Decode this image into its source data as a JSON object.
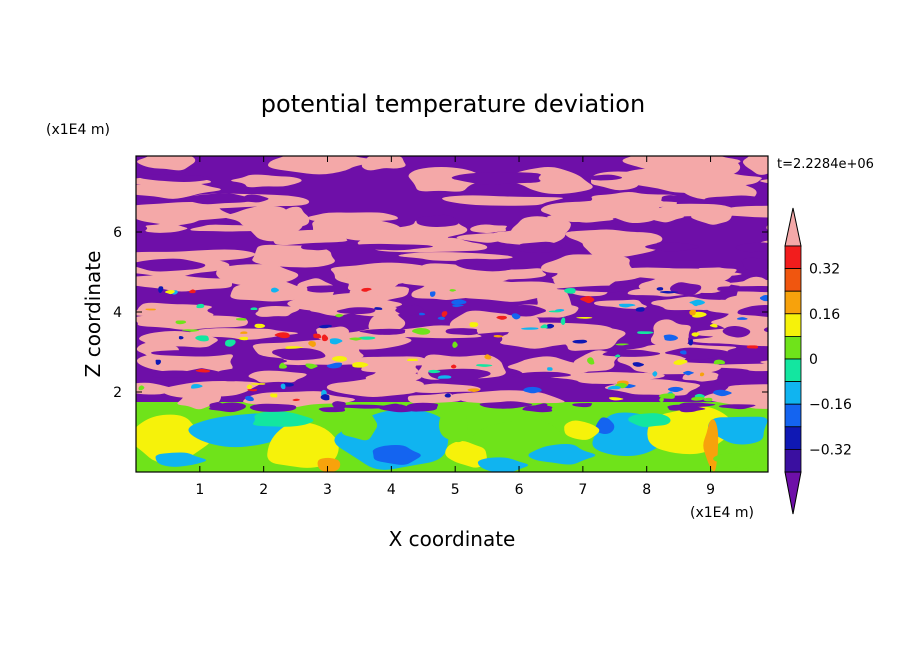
{
  "chart_data": {
    "type": "heatmap",
    "title": "potential temperature deviation",
    "time_label": "t=2.2284e+06",
    "xlabel": "X coordinate",
    "ylabel": "Z coordinate",
    "x_unit": "(x1E4 m)",
    "y_unit": "(x1E4 m)",
    "xlim": [
      0,
      9.9
    ],
    "ylim": [
      0,
      7.9
    ],
    "x_ticks": [
      "1",
      "2",
      "3",
      "4",
      "5",
      "6",
      "7",
      "8",
      "9"
    ],
    "y_ticks": [
      "2",
      "4",
      "6"
    ],
    "colorbar": {
      "levels": [
        -0.48,
        -0.4,
        -0.32,
        -0.24,
        -0.16,
        -0.08,
        0,
        0.08,
        0.16,
        0.24,
        0.32,
        0.4
      ],
      "tick_labels": [
        "0.32",
        "0.16",
        "0",
        "−0.16",
        "−0.32"
      ],
      "tick_values": [
        0.32,
        0.16,
        0,
        -0.16,
        -0.32
      ],
      "colors": [
        "#6e0fa8",
        "#3a0fa0",
        "#0f18b4",
        "#1464f0",
        "#10b4f0",
        "#13e6a0",
        "#6fe31a",
        "#f6f20a",
        "#f7a20c",
        "#f0560f",
        "#f21d1d",
        "#f4a8a8"
      ],
      "extend": "both"
    },
    "fields": {
      "upper_band_colors": [
        "#f4a8a8",
        "#6e0fa8"
      ],
      "lower_band_colors": [
        "#6fe31a",
        "#10b4f0",
        "#f6f20a",
        "#0f18b4",
        "#f7a20c"
      ]
    }
  }
}
